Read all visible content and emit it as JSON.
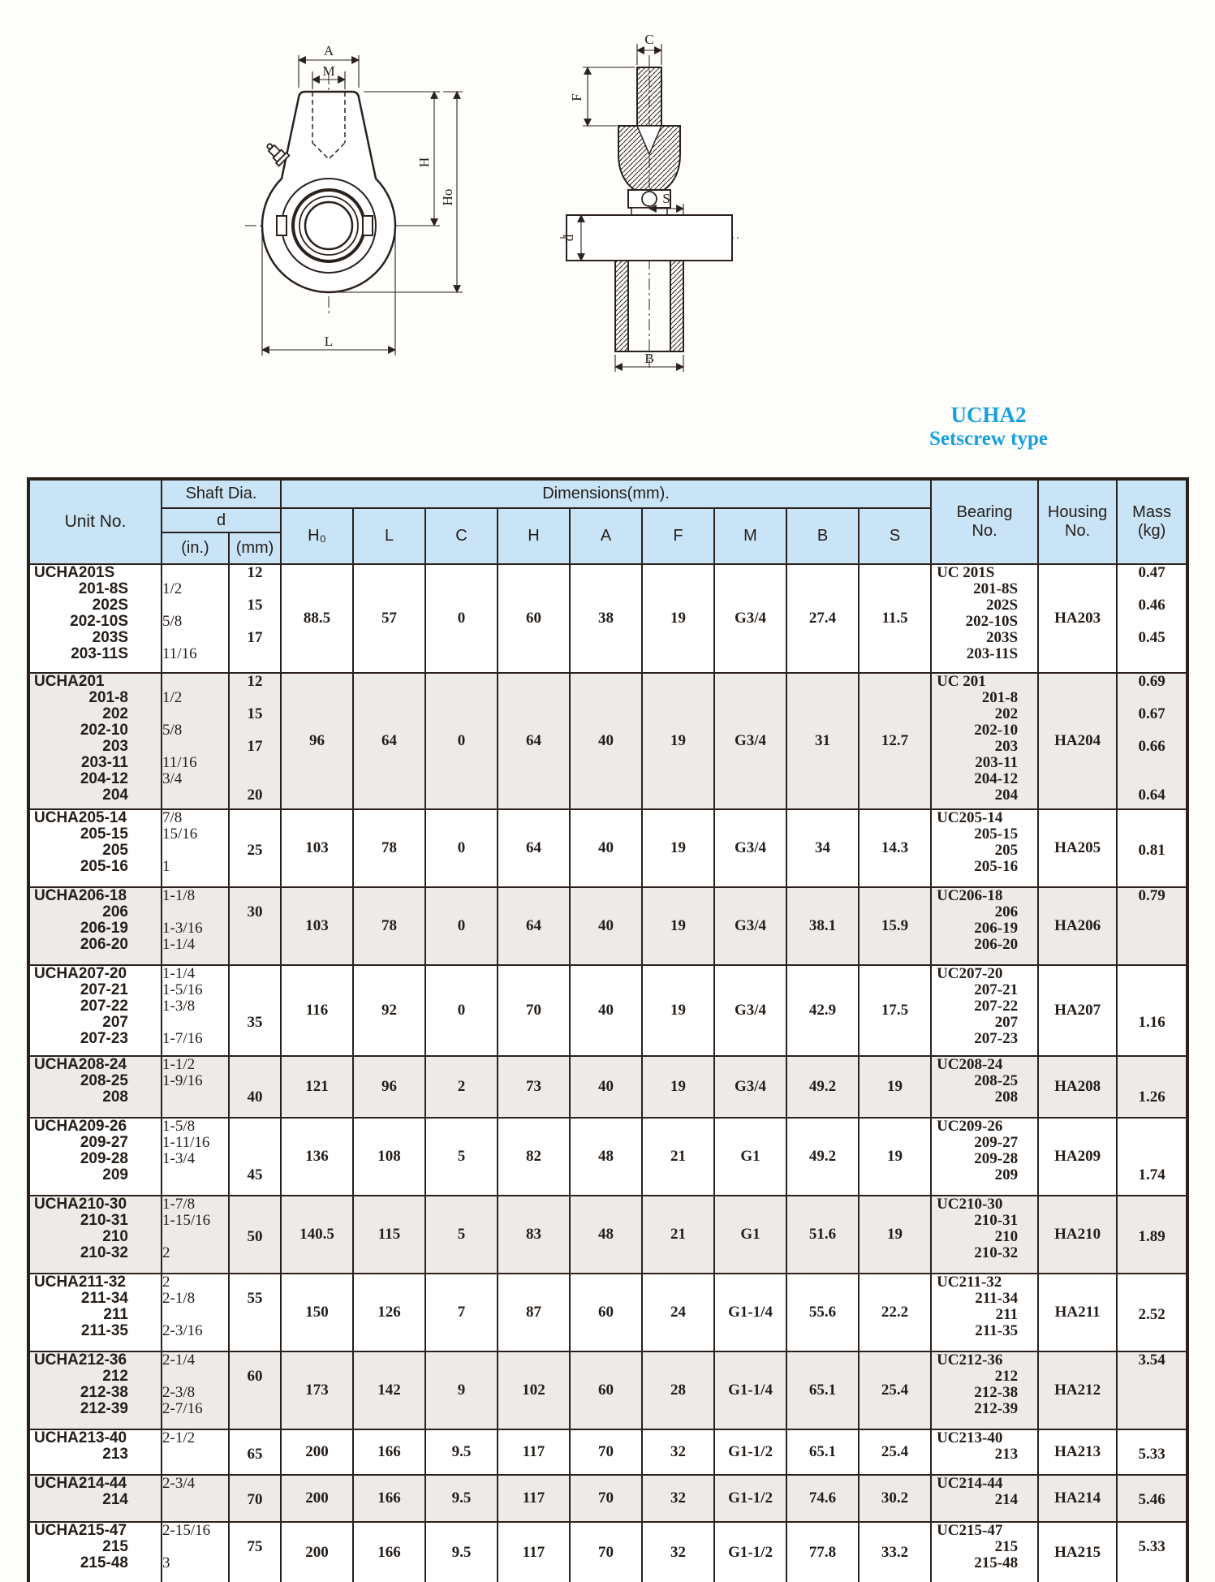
{
  "page": {
    "series_label": "UCHA2",
    "series_sublabel": "Setscrew type",
    "accent_color": "#17a0df"
  },
  "drawing": {
    "front_labels": [
      "A",
      "M",
      "H",
      "Ho",
      "L"
    ],
    "side_labels": [
      "C",
      "F",
      "S",
      "d",
      "B"
    ]
  },
  "table": {
    "header": {
      "unit_no": "Unit No.",
      "shaft_dia": "Shaft Dia.",
      "d": "d",
      "in": "(in.)",
      "mm": "(mm)",
      "dimensions": "Dimensions(mm).",
      "dim_cols": [
        "H₀",
        "L",
        "C",
        "H",
        "A",
        "F",
        "M",
        "B",
        "S"
      ],
      "bearing_no": [
        "Bearing",
        "No."
      ],
      "housing_no": [
        "Housing",
        "No."
      ],
      "mass": [
        "Mass",
        "(kg)"
      ]
    },
    "rows": [
      {
        "unit": [
          "UCHA201S",
          "201-8S",
          "202S",
          "202-10S",
          "203S",
          "203-11S"
        ],
        "shaft_in": [
          "",
          "1/2",
          "",
          "5/8",
          "",
          "11/16"
        ],
        "shaft_mm": [
          "12",
          "",
          "15",
          "",
          "17"
        ],
        "H0": "88.5",
        "L": "57",
        "C": "0",
        "H": "60",
        "A": "38",
        "F": "19",
        "M": "G3/4",
        "B": "27.4",
        "S": "11.5",
        "bearing": [
          "UC 201S",
          "201-8S",
          "202S",
          "202-10S",
          "203S",
          "203-11S"
        ],
        "housing": "HA203",
        "mass": [
          "0.47",
          "",
          "0.46",
          "",
          "0.45"
        ],
        "shaded": false
      },
      {
        "unit": [
          "UCHA201",
          "201-8",
          "202",
          "202-10",
          "203",
          "203-11",
          "204-12",
          "204"
        ],
        "shaft_in": [
          "",
          "1/2",
          "",
          "5/8",
          "",
          "11/16",
          "3/4"
        ],
        "shaft_mm": [
          "12",
          "",
          "15",
          "",
          "17",
          "",
          "",
          "20"
        ],
        "H0": "96",
        "L": "64",
        "C": "0",
        "H": "64",
        "A": "40",
        "F": "19",
        "M": "G3/4",
        "B": "31",
        "S": "12.7",
        "bearing": [
          "UC 201",
          "201-8",
          "202",
          "202-10",
          "203",
          "203-11",
          "204-12",
          "204"
        ],
        "housing": "HA204",
        "mass": [
          "0.69",
          "",
          "0.67",
          "",
          "0.66",
          "",
          "",
          "0.64"
        ],
        "shaded": true
      },
      {
        "unit": [
          "UCHA205-14",
          "205-15",
          "205",
          "205-16"
        ],
        "shaft_in": [
          "7/8",
          "15/16",
          "",
          "1"
        ],
        "shaft_mm": [
          "",
          "",
          "25"
        ],
        "H0": "103",
        "L": "78",
        "C": "0",
        "H": "64",
        "A": "40",
        "F": "19",
        "M": "G3/4",
        "B": "34",
        "S": "14.3",
        "bearing": [
          "UC205-14",
          "205-15",
          "205",
          "205-16"
        ],
        "housing": "HA205",
        "mass": [
          "",
          "",
          "0.81"
        ],
        "shaded": false
      },
      {
        "unit": [
          "UCHA206-18",
          "206",
          "206-19",
          "206-20"
        ],
        "shaft_in": [
          "1-1/8",
          "",
          "1-3/16",
          "1-1/4"
        ],
        "shaft_mm": [
          "",
          "30"
        ],
        "H0": "103",
        "L": "78",
        "C": "0",
        "H": "64",
        "A": "40",
        "F": "19",
        "M": "G3/4",
        "B": "38.1",
        "S": "15.9",
        "bearing": [
          "UC206-18",
          "206",
          "206-19",
          "206-20"
        ],
        "housing": "HA206",
        "mass": [
          "0.79"
        ],
        "shaded": true
      },
      {
        "unit": [
          "UCHA207-20",
          "207-21",
          "207-22",
          "207",
          "207-23"
        ],
        "shaft_in": [
          "1-1/4",
          "1-5/16",
          "1-3/8",
          "",
          "1-7/16"
        ],
        "shaft_mm": [
          "",
          "",
          "",
          "35"
        ],
        "H0": "116",
        "L": "92",
        "C": "0",
        "H": "70",
        "A": "40",
        "F": "19",
        "M": "G3/4",
        "B": "42.9",
        "S": "17.5",
        "bearing": [
          "UC207-20",
          "207-21",
          "207-22",
          "207",
          "207-23"
        ],
        "housing": "HA207",
        "mass": [
          "",
          "",
          "",
          "1.16"
        ],
        "shaded": false
      },
      {
        "unit": [
          "UCHA208-24",
          "208-25",
          "208"
        ],
        "shaft_in": [
          "1-1/2",
          "1-9/16"
        ],
        "shaft_mm": [
          "",
          "",
          "40"
        ],
        "H0": "121",
        "L": "96",
        "C": "2",
        "H": "73",
        "A": "40",
        "F": "19",
        "M": "G3/4",
        "B": "49.2",
        "S": "19",
        "bearing": [
          "UC208-24",
          "208-25",
          "208"
        ],
        "housing": "HA208",
        "mass": [
          "",
          "",
          "1.26"
        ],
        "shaded": true
      },
      {
        "unit": [
          "UCHA209-26",
          "209-27",
          "209-28",
          "209"
        ],
        "shaft_in": [
          "1-5/8",
          "1-11/16",
          "1-3/4"
        ],
        "shaft_mm": [
          "",
          "",
          "",
          "45"
        ],
        "H0": "136",
        "L": "108",
        "C": "5",
        "H": "82",
        "A": "48",
        "F": "21",
        "M": "G1",
        "B": "49.2",
        "S": "19",
        "bearing": [
          "UC209-26",
          "209-27",
          "209-28",
          "209"
        ],
        "housing": "HA209",
        "mass": [
          "",
          "",
          "",
          "1.74"
        ],
        "shaded": false
      },
      {
        "unit": [
          "UCHA210-30",
          "210-31",
          "210",
          "210-32"
        ],
        "shaft_in": [
          "1-7/8",
          "1-15/16",
          "",
          "2"
        ],
        "shaft_mm": [
          "",
          "",
          "50"
        ],
        "H0": "140.5",
        "L": "115",
        "C": "5",
        "H": "83",
        "A": "48",
        "F": "21",
        "M": "G1",
        "B": "51.6",
        "S": "19",
        "bearing": [
          "UC210-30",
          "210-31",
          "210",
          "210-32"
        ],
        "housing": "HA210",
        "mass": [
          "",
          "",
          "1.89"
        ],
        "shaded": true
      },
      {
        "unit": [
          "UCHA211-32",
          "211-34",
          "211",
          "211-35"
        ],
        "shaft_in": [
          "2",
          "2-1/8",
          "",
          "2-3/16"
        ],
        "shaft_mm": [
          "",
          "55"
        ],
        "H0": "150",
        "L": "126",
        "C": "7",
        "H": "87",
        "A": "60",
        "F": "24",
        "M": "G1-1/4",
        "B": "55.6",
        "S": "22.2",
        "bearing": [
          "UC211-32",
          "211-34",
          "211",
          "211-35"
        ],
        "housing": "HA211",
        "mass": [
          "",
          "",
          "2.52"
        ],
        "shaded": false
      },
      {
        "unit": [
          "UCHA212-36",
          "212",
          "212-38",
          "212-39"
        ],
        "shaft_in": [
          "2-1/4",
          "",
          "2-3/8",
          "2-7/16"
        ],
        "shaft_mm": [
          "",
          "60"
        ],
        "H0": "173",
        "L": "142",
        "C": "9",
        "H": "102",
        "A": "60",
        "F": "28",
        "M": "G1-1/4",
        "B": "65.1",
        "S": "25.4",
        "bearing": [
          "UC212-36",
          "212",
          "212-38",
          "212-39"
        ],
        "housing": "HA212",
        "mass": [
          "3.54"
        ],
        "shaded": true
      },
      {
        "unit": [
          "UCHA213-40",
          "213"
        ],
        "shaft_in": [
          "2-1/2"
        ],
        "shaft_mm": [
          "",
          "65"
        ],
        "H0": "200",
        "L": "166",
        "C": "9.5",
        "H": "117",
        "A": "70",
        "F": "32",
        "M": "G1-1/2",
        "B": "65.1",
        "S": "25.4",
        "bearing": [
          "UC213-40",
          "213"
        ],
        "housing": "HA213",
        "mass": [
          "",
          "5.33"
        ],
        "shaded": false
      },
      {
        "unit": [
          "UCHA214-44",
          "214"
        ],
        "shaft_in": [
          "2-3/4"
        ],
        "shaft_mm": [
          "",
          "70"
        ],
        "H0": "200",
        "L": "166",
        "C": "9.5",
        "H": "117",
        "A": "70",
        "F": "32",
        "M": "G1-1/2",
        "B": "74.6",
        "S": "30.2",
        "bearing": [
          "UC214-44",
          "214"
        ],
        "housing": "HA214",
        "mass": [
          "",
          "5.46"
        ],
        "shaded": true
      },
      {
        "unit": [
          "UCHA215-47",
          "215",
          "215-48"
        ],
        "shaft_in": [
          "2-15/16",
          "",
          "3"
        ],
        "shaft_mm": [
          "",
          "75"
        ],
        "H0": "200",
        "L": "166",
        "C": "9.5",
        "H": "117",
        "A": "70",
        "F": "32",
        "M": "G1-1/2",
        "B": "77.8",
        "S": "33.2",
        "bearing": [
          "UC215-47",
          "215",
          "215-48"
        ],
        "housing": "HA215",
        "mass": [
          "",
          "5.33"
        ],
        "shaded": false
      }
    ]
  }
}
